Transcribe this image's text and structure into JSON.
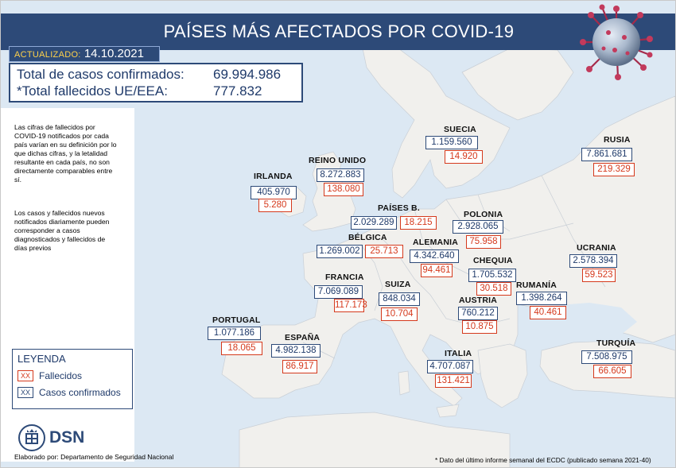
{
  "title": "PAÍSES MÁS AFECTADOS POR COVID-19",
  "updated": {
    "label": "ACTUALIZADO:",
    "date": "14.10.2021"
  },
  "totals": {
    "cases_label": "Total de casos confirmados:",
    "cases_value": "69.994.986",
    "deaths_label": "*Total fallecidos UE/EEA:",
    "deaths_value": "777.832"
  },
  "notes": {
    "note1": "Las cifras de fallecidos por COVID-19 notificados por cada país varían en su definición por lo que dichas cifras, y la letalidad resultante en cada país, no son directamente comparables entre sí.",
    "note2": "Los casos y fallecidos nuevos notificados diariamente pueden corresponder a casos diagnosticados y fallecidos de días previos"
  },
  "legend": {
    "title": "LEYENDA",
    "swatch": "XX",
    "deaths_label": "Fallecidos",
    "cases_label": "Casos confirmados"
  },
  "logo": {
    "text": "DSN"
  },
  "credit": "Elaborado por: Departamento de Seguridad Nacional",
  "footnote": "* Dato del último informe semanal del ECDC (publicado semana 2021-40)",
  "colors": {
    "header": "#2d4a78",
    "cases": "#2d4a78",
    "deaths": "#d5391c",
    "sea": "#dce8f3",
    "land": "#f1f0ed"
  },
  "countries": {
    "irlanda": {
      "name": "IRLANDA",
      "cases": "405.970",
      "deaths": "5.280"
    },
    "reino_unido": {
      "name": "REINO UNIDO",
      "cases": "8.272.883",
      "deaths": "138.080"
    },
    "paises_bajos": {
      "name": "PAÍSES B.",
      "cases": "2.029.289",
      "deaths": "18.215"
    },
    "belgica": {
      "name": "BÉLGICA",
      "cases": "1.269.002",
      "deaths": "25.713"
    },
    "francia": {
      "name": "FRANCIA",
      "cases": "7.069.089",
      "deaths": "117.173"
    },
    "suiza": {
      "name": "SUIZA",
      "cases": "848.034",
      "deaths": "10.704"
    },
    "portugal": {
      "name": "PORTUGAL",
      "cases": "1.077.186",
      "deaths": "18.065"
    },
    "espana": {
      "name": "ESPAÑA",
      "cases": "4.982.138",
      "deaths": "86.917"
    },
    "suecia": {
      "name": "SUECIA",
      "cases": "1.159.560",
      "deaths": "14.920"
    },
    "rusia": {
      "name": "RUSIA",
      "cases": "7.861.681",
      "deaths": "219.329"
    },
    "polonia": {
      "name": "POLONIA",
      "cases": "2.928.065",
      "deaths": "75.958"
    },
    "alemania": {
      "name": "ALEMANIA",
      "cases": "4.342.640",
      "deaths": "94.461"
    },
    "chequia": {
      "name": "CHEQUIA",
      "cases": "1.705.532",
      "deaths": "30.518"
    },
    "austria": {
      "name": "AUSTRIA",
      "cases": "760.212",
      "deaths": "10.875"
    },
    "rumania": {
      "name": "RUMANÍA",
      "cases": "1.398.264",
      "deaths": "40.461"
    },
    "ucrania": {
      "name": "UCRANIA",
      "cases": "2.578.394",
      "deaths": "59.523"
    },
    "italia": {
      "name": "ITALIA",
      "cases": "4.707.087",
      "deaths": "131.421"
    },
    "turquia": {
      "name": "TURQUÍA",
      "cases": "7.508.975",
      "deaths": "66.605"
    }
  }
}
